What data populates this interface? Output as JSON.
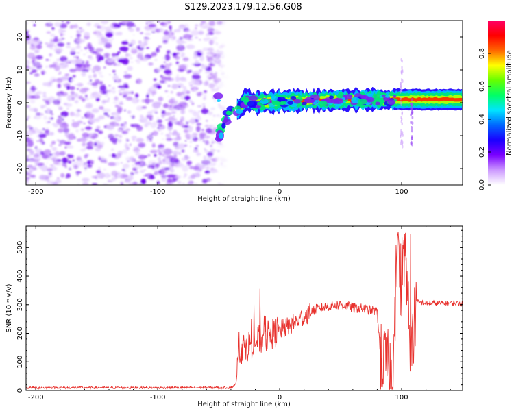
{
  "title": "S129.2023.179.12.56.G08",
  "chart_data": [
    {
      "type": "heatmap",
      "xlabel": "Height of straight line (km)",
      "ylabel": "Frequency (Hz)",
      "xlim": [
        -208,
        150
      ],
      "ylim": [
        -25,
        25
      ],
      "xticks": [
        -200,
        -100,
        0,
        100
      ],
      "yticks": [
        20,
        10,
        0,
        -10,
        -20
      ],
      "colorbar": {
        "label": "Normalized spectral amplitude",
        "range": [
          0.0,
          1.0
        ],
        "ticks": [
          "0.0",
          "0.2",
          "0.4",
          "0.6",
          "0.8"
        ],
        "colors": [
          "#ffffff",
          "#cc99ff",
          "#7a00ff",
          "#1a00ff",
          "#0066ff",
          "#00e5ff",
          "#00ff66",
          "#66ff00",
          "#ffff00",
          "#ff6600",
          "#ff0000",
          "#ff0066"
        ]
      },
      "noise_region_x": [
        -208,
        -50
      ],
      "signal_track": [
        {
          "x": -50,
          "f": -10
        },
        {
          "x": -45,
          "f": -6
        },
        {
          "x": -40,
          "f": -2
        },
        {
          "x": -33,
          "f": -2
        },
        {
          "x": -28,
          "f": 1
        },
        {
          "x": -20,
          "f": 0
        },
        {
          "x": 0,
          "f": 0.5
        },
        {
          "x": 40,
          "f": 0.8
        },
        {
          "x": 80,
          "f": 1
        },
        {
          "x": 100,
          "f": 1
        },
        {
          "x": 150,
          "f": 1
        }
      ],
      "grid": false
    },
    {
      "type": "line",
      "xlabel": "Height of straight line (km)",
      "ylabel": "SNR (10 * v/v)",
      "xlim": [
        -208,
        150
      ],
      "ylim": [
        0,
        575
      ],
      "xticks": [
        -200,
        -100,
        0,
        100
      ],
      "yticks": [
        0,
        100,
        200,
        300,
        400,
        500
      ],
      "color": "#e8322e",
      "series": [
        {
          "points": [
            {
              "x": -208,
              "y": 10
            },
            {
              "x": -150,
              "y": 10
            },
            {
              "x": -100,
              "y": 10
            },
            {
              "x": -40,
              "y": 10
            },
            {
              "x": -36,
              "y": 20
            },
            {
              "x": -33,
              "y": 140
            },
            {
              "x": -30,
              "y": 150
            },
            {
              "x": -25,
              "y": 160
            },
            {
              "x": -20,
              "y": 170
            },
            {
              "x": -15,
              "y": 180
            },
            {
              "x": -10,
              "y": 190
            },
            {
              "x": -5,
              "y": 200
            },
            {
              "x": 0,
              "y": 210
            },
            {
              "x": 10,
              "y": 230
            },
            {
              "x": 20,
              "y": 260
            },
            {
              "x": 30,
              "y": 285
            },
            {
              "x": 40,
              "y": 295
            },
            {
              "x": 50,
              "y": 300
            },
            {
              "x": 60,
              "y": 290
            },
            {
              "x": 70,
              "y": 285
            },
            {
              "x": 80,
              "y": 275
            },
            {
              "x": 83,
              "y": 110
            },
            {
              "x": 88,
              "y": 90
            },
            {
              "x": 93,
              "y": 60
            },
            {
              "x": 97,
              "y": 480
            },
            {
              "x": 100,
              "y": 300
            },
            {
              "x": 103,
              "y": 470
            },
            {
              "x": 108,
              "y": 120
            },
            {
              "x": 112,
              "y": 310
            },
            {
              "x": 120,
              "y": 305
            },
            {
              "x": 130,
              "y": 305
            },
            {
              "x": 140,
              "y": 305
            },
            {
              "x": 150,
              "y": 305
            }
          ]
        }
      ],
      "grid": false
    }
  ]
}
